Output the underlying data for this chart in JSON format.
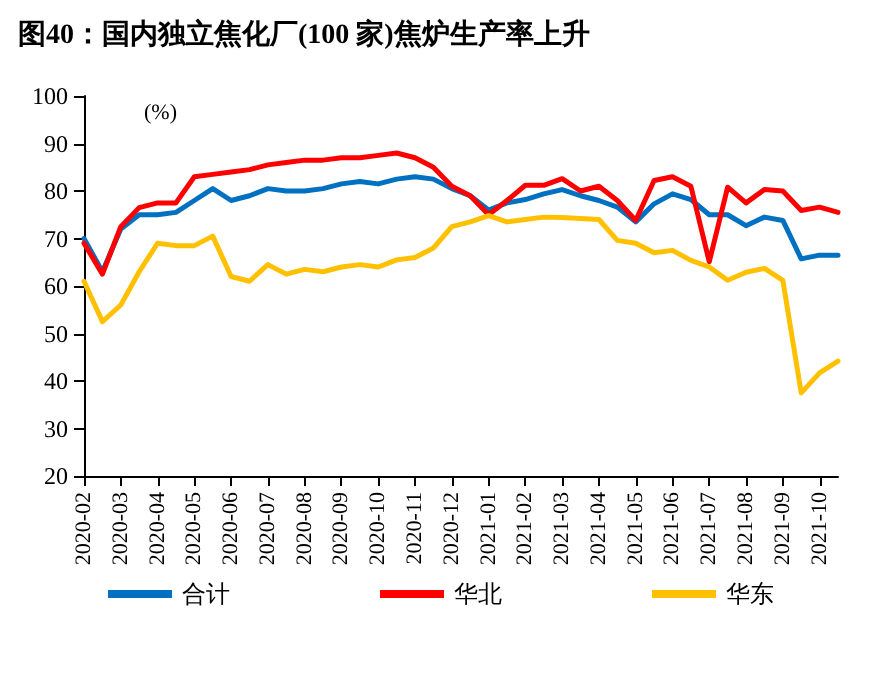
{
  "chart_data": {
    "type": "line",
    "title": "图40：国内独立焦化厂(100 家)焦炉生产率上升",
    "ylabel": "(%)",
    "categories": [
      "2020-02",
      null,
      "2020-03",
      null,
      "2020-04",
      null,
      "2020-05",
      null,
      "2020-06",
      null,
      "2020-07",
      null,
      "2020-08",
      null,
      "2020-09",
      null,
      "2020-10",
      null,
      "2020-11",
      null,
      "2020-12",
      null,
      "2021-01",
      null,
      "2021-02",
      null,
      "2021-03",
      null,
      "2021-04",
      null,
      "2021-05",
      null,
      "2021-06",
      null,
      "2021-07",
      null,
      "2021-08",
      null,
      "2021-09",
      null,
      "2021-10",
      null
    ],
    "ylim": [
      20,
      100
    ],
    "yticks": [
      20,
      30,
      40,
      50,
      60,
      70,
      80,
      90,
      100
    ],
    "grid": false,
    "legend": "bottom",
    "marker": "none",
    "line_style": "solid",
    "series": [
      {
        "name": "合计",
        "color": "#0070c0",
        "values": [
          70,
          63,
          72,
          75,
          75,
          75.5,
          78,
          80.5,
          78,
          79,
          80.5,
          80,
          80,
          80.5,
          81.5,
          82,
          81.5,
          82.5,
          83,
          82.5,
          80.5,
          79,
          76,
          77.5,
          78.2,
          79.4,
          80.3,
          79,
          78,
          76.6,
          73.5,
          77.3,
          79.4,
          78.2,
          75,
          75,
          72.7,
          74.5,
          73.8,
          65.7,
          66.5,
          66.5
        ]
      },
      {
        "name": "华北",
        "color": "#ff0000",
        "values": [
          69,
          62.5,
          72.5,
          76.5,
          77.5,
          77.5,
          83,
          83.5,
          84,
          84.5,
          85.5,
          86,
          86.5,
          86.5,
          87,
          87,
          87.5,
          88,
          87,
          85,
          81,
          79,
          75,
          78,
          81.2,
          81.2,
          82.6,
          80,
          81,
          78,
          73.8,
          82.2,
          83,
          81,
          65.1,
          80.8,
          77.5,
          80.3,
          80,
          75.9,
          76.6,
          75.5
        ]
      },
      {
        "name": "华东",
        "color": "#ffc000",
        "values": [
          61,
          52.5,
          56,
          63,
          69,
          68.5,
          68.5,
          70.5,
          62,
          61,
          64.5,
          62.5,
          63.5,
          63,
          64,
          64.5,
          64,
          65.5,
          66,
          68,
          72.5,
          73.5,
          74.8,
          73.5,
          74,
          74.5,
          74.4,
          74.2,
          74,
          69.6,
          69,
          67,
          67.5,
          65.4,
          64,
          61.2,
          62.9,
          63.7,
          61.2,
          37.5,
          41.7,
          44.2
        ]
      }
    ]
  }
}
